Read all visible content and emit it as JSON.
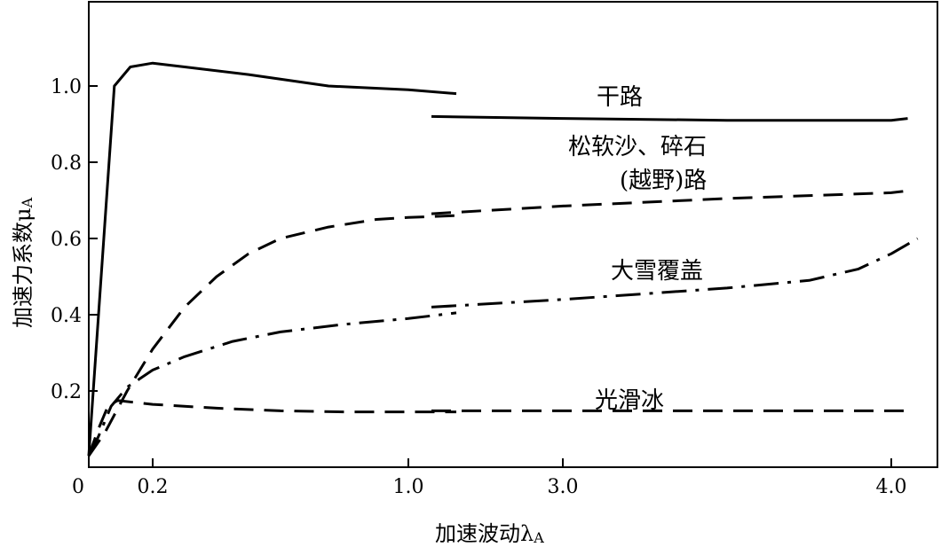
{
  "chart_data": {
    "type": "line",
    "title": "",
    "xlabel": "加速波动λ",
    "xlabel_sub": "A",
    "ylabel": "加速力系数μ",
    "ylabel_sub": "A",
    "x_axis_note": "piecewise axis: 0–1.0 (fine), then 3.0–4.0 (compressed)",
    "x_ticks": [
      "0",
      "0.2",
      "1.0",
      "3.0",
      "4.0"
    ],
    "y_ticks": [
      "0.2",
      "0.4",
      "0.6",
      "0.8",
      "1.0"
    ],
    "xlim": [
      0,
      4.1
    ],
    "ylim": [
      0,
      1.2
    ],
    "grid": false,
    "series": [
      {
        "name": "干路",
        "style": "solid",
        "segments": [
          [
            [
              0,
              0.03
            ],
            [
              0.08,
              1.0
            ],
            [
              0.13,
              1.05
            ],
            [
              0.2,
              1.06
            ],
            [
              0.3,
              1.05
            ],
            [
              0.5,
              1.03
            ],
            [
              0.75,
              1.0
            ],
            [
              1.0,
              0.99
            ],
            [
              1.15,
              0.98
            ]
          ],
          [
            [
              2.6,
              0.92
            ],
            [
              3.0,
              0.915
            ],
            [
              3.5,
              0.91
            ],
            [
              4.0,
              0.91
            ],
            [
              4.05,
              0.915
            ]
          ]
        ]
      },
      {
        "name": "松软沙、碎石(越野)路",
        "label_lines": [
          "松软沙、碎石",
          "(越野)路"
        ],
        "style": "dashed",
        "segments": [
          [
            [
              0,
              0.03
            ],
            [
              0.05,
              0.09
            ],
            [
              0.12,
              0.2
            ],
            [
              0.2,
              0.31
            ],
            [
              0.3,
              0.42
            ],
            [
              0.4,
              0.5
            ],
            [
              0.5,
              0.56
            ],
            [
              0.6,
              0.6
            ],
            [
              0.75,
              0.63
            ],
            [
              0.9,
              0.65
            ],
            [
              1.0,
              0.655
            ],
            [
              1.15,
              0.66
            ]
          ],
          [
            [
              2.6,
              0.665
            ],
            [
              3.0,
              0.685
            ],
            [
              3.5,
              0.705
            ],
            [
              4.0,
              0.72
            ],
            [
              4.05,
              0.725
            ]
          ]
        ]
      },
      {
        "name": "大雪覆盖",
        "style": "dash-dot",
        "segments": [
          [
            [
              0,
              0.03
            ],
            [
              0.03,
              0.08
            ],
            [
              0.07,
              0.16
            ],
            [
              0.12,
              0.21
            ],
            [
              0.2,
              0.255
            ],
            [
              0.3,
              0.29
            ],
            [
              0.45,
              0.33
            ],
            [
              0.6,
              0.355
            ],
            [
              0.8,
              0.375
            ],
            [
              1.0,
              0.39
            ],
            [
              1.15,
              0.405
            ]
          ],
          [
            [
              2.6,
              0.42
            ],
            [
              3.0,
              0.44
            ],
            [
              3.5,
              0.47
            ],
            [
              3.75,
              0.49
            ],
            [
              3.9,
              0.52
            ],
            [
              4.0,
              0.56
            ],
            [
              4.08,
              0.6
            ]
          ]
        ]
      },
      {
        "name": "光滑冰",
        "style": "dashed",
        "segments": [
          [
            [
              0,
              0.03
            ],
            [
              0.03,
              0.1
            ],
            [
              0.06,
              0.16
            ],
            [
              0.09,
              0.175
            ],
            [
              0.2,
              0.165
            ],
            [
              0.4,
              0.155
            ],
            [
              0.6,
              0.148
            ],
            [
              0.8,
              0.145
            ],
            [
              1.0,
              0.145
            ],
            [
              1.15,
              0.145
            ]
          ],
          [
            [
              2.6,
              0.148
            ],
            [
              3.0,
              0.148
            ],
            [
              3.5,
              0.148
            ],
            [
              4.0,
              0.148
            ],
            [
              4.05,
              0.148
            ]
          ]
        ]
      }
    ]
  }
}
